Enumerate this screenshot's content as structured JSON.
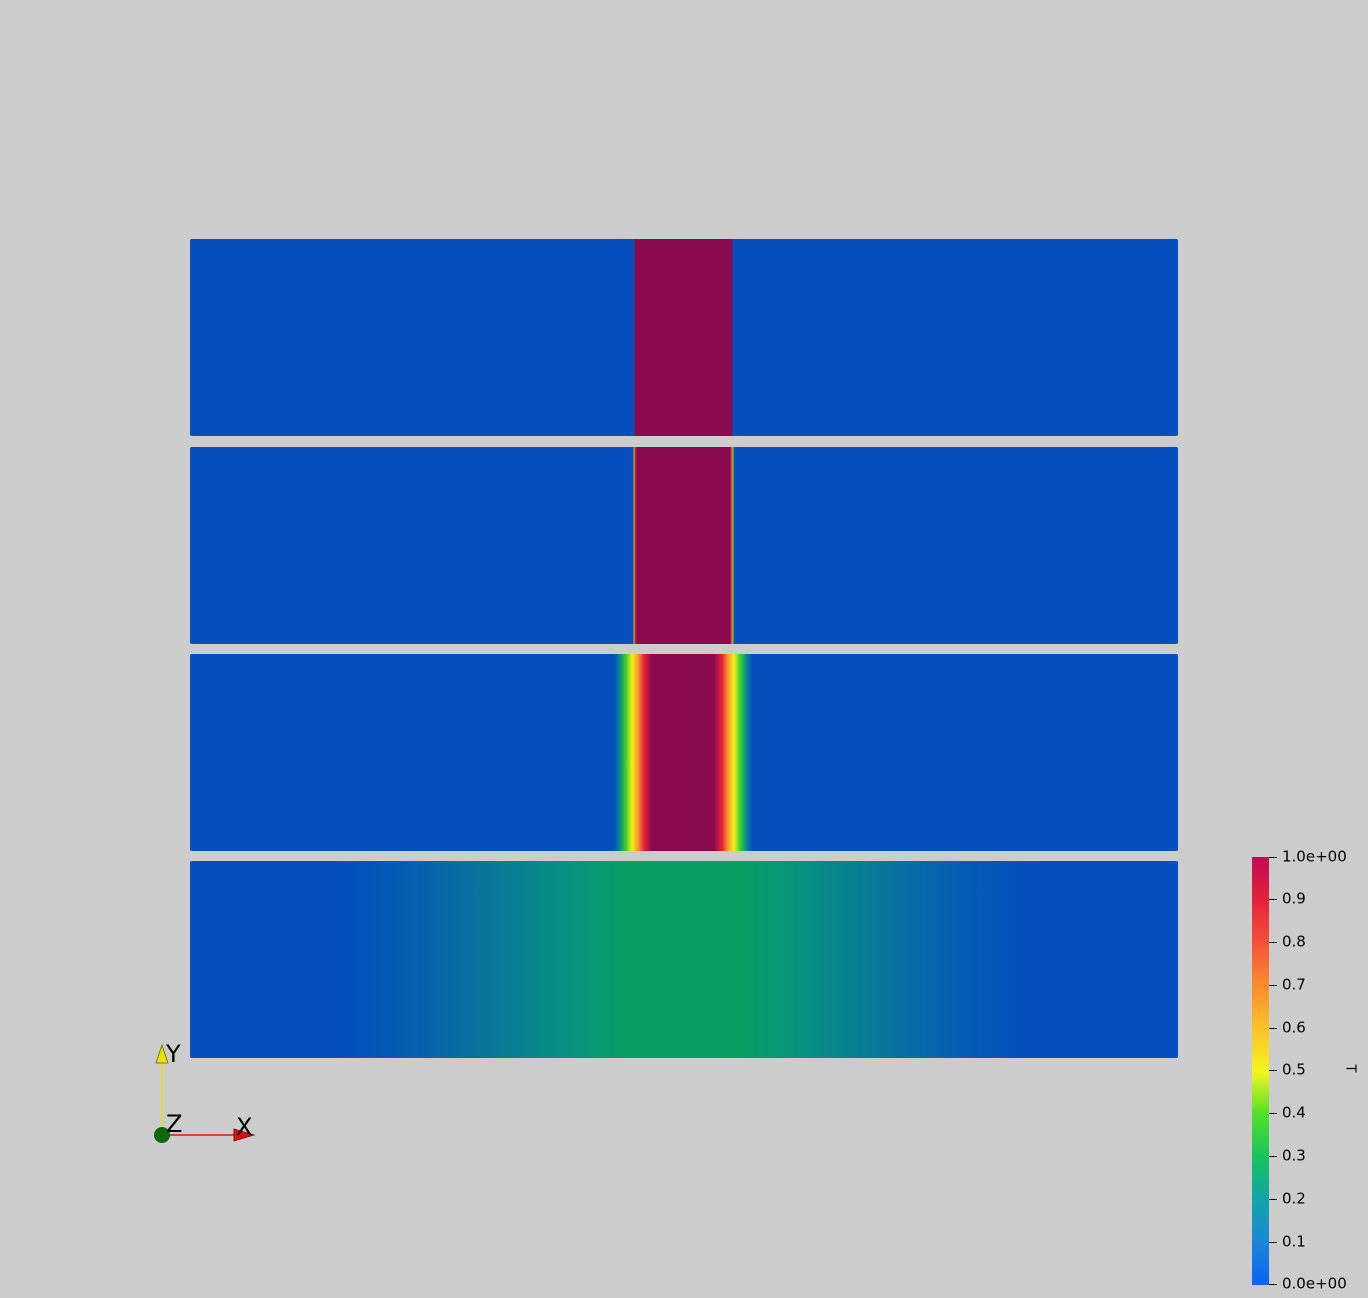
{
  "view": {
    "background_color": "#cccccc"
  },
  "panels": [
    {
      "name": "panel-1"
    },
    {
      "name": "panel-2"
    },
    {
      "name": "panel-3"
    },
    {
      "name": "panel-4"
    }
  ],
  "axes_widget": {
    "x_label": "X",
    "y_label": "Y",
    "z_label": "Z",
    "x_color": "#e01010",
    "y_color": "#e8e000",
    "z_color": "#0a6a0a"
  },
  "colorbar": {
    "title": "T",
    "range": [
      0.0,
      1.0
    ],
    "labels": {
      "max": "1.0e+00",
      "t09": "0.9",
      "t08": "0.8",
      "t07": "0.7",
      "t06": "0.6",
      "t05": "0.5",
      "t04": "0.4",
      "t03": "0.3",
      "t02": "0.2",
      "t01": "0.1",
      "min": "0.0e+00"
    }
  }
}
